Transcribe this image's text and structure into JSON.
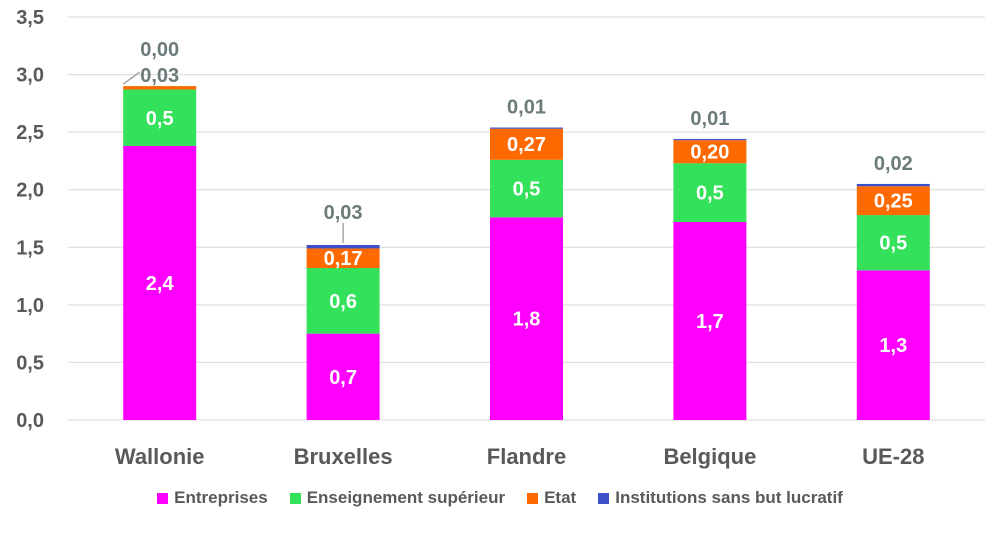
{
  "chart_data": {
    "type": "bar",
    "stacked": true,
    "categories": [
      "Wallonie",
      "Bruxelles",
      "Flandre",
      "Belgique",
      "UE-28"
    ],
    "series": [
      {
        "name": "Entreprises",
        "color": "#ff00ff",
        "values": [
          2.38,
          0.75,
          1.76,
          1.72,
          1.3
        ],
        "labels": [
          "2,4",
          "0,7",
          "1,8",
          "1,7",
          "1,3"
        ]
      },
      {
        "name": "Enseignement supérieur",
        "color": "#33e15a",
        "values": [
          0.49,
          0.57,
          0.5,
          0.51,
          0.48
        ],
        "labels": [
          "0,5",
          "0,6",
          "0,5",
          "0,5",
          "0,5"
        ]
      },
      {
        "name": "Etat",
        "color": "#ff6a00",
        "values": [
          0.03,
          0.17,
          0.27,
          0.2,
          0.25
        ],
        "labels": [
          "0,03",
          "0,17",
          "0,27",
          "0,20",
          "0,25"
        ]
      },
      {
        "name": "Institutions sans but lucratif",
        "color": "#3a4fc8",
        "values": [
          0.0,
          0.03,
          0.01,
          0.01,
          0.02
        ],
        "labels": [
          "0,00",
          "0,03",
          "0,01",
          "0,01",
          "0,02"
        ]
      }
    ],
    "ylim": [
      0,
      3.5
    ],
    "yticks": [
      "0,0",
      "0,5",
      "1,0",
      "1,5",
      "2,0",
      "2,5",
      "3,0",
      "3,5"
    ],
    "grid": true,
    "legend_position": "bottom",
    "title": "",
    "xlabel": "",
    "ylabel": ""
  }
}
